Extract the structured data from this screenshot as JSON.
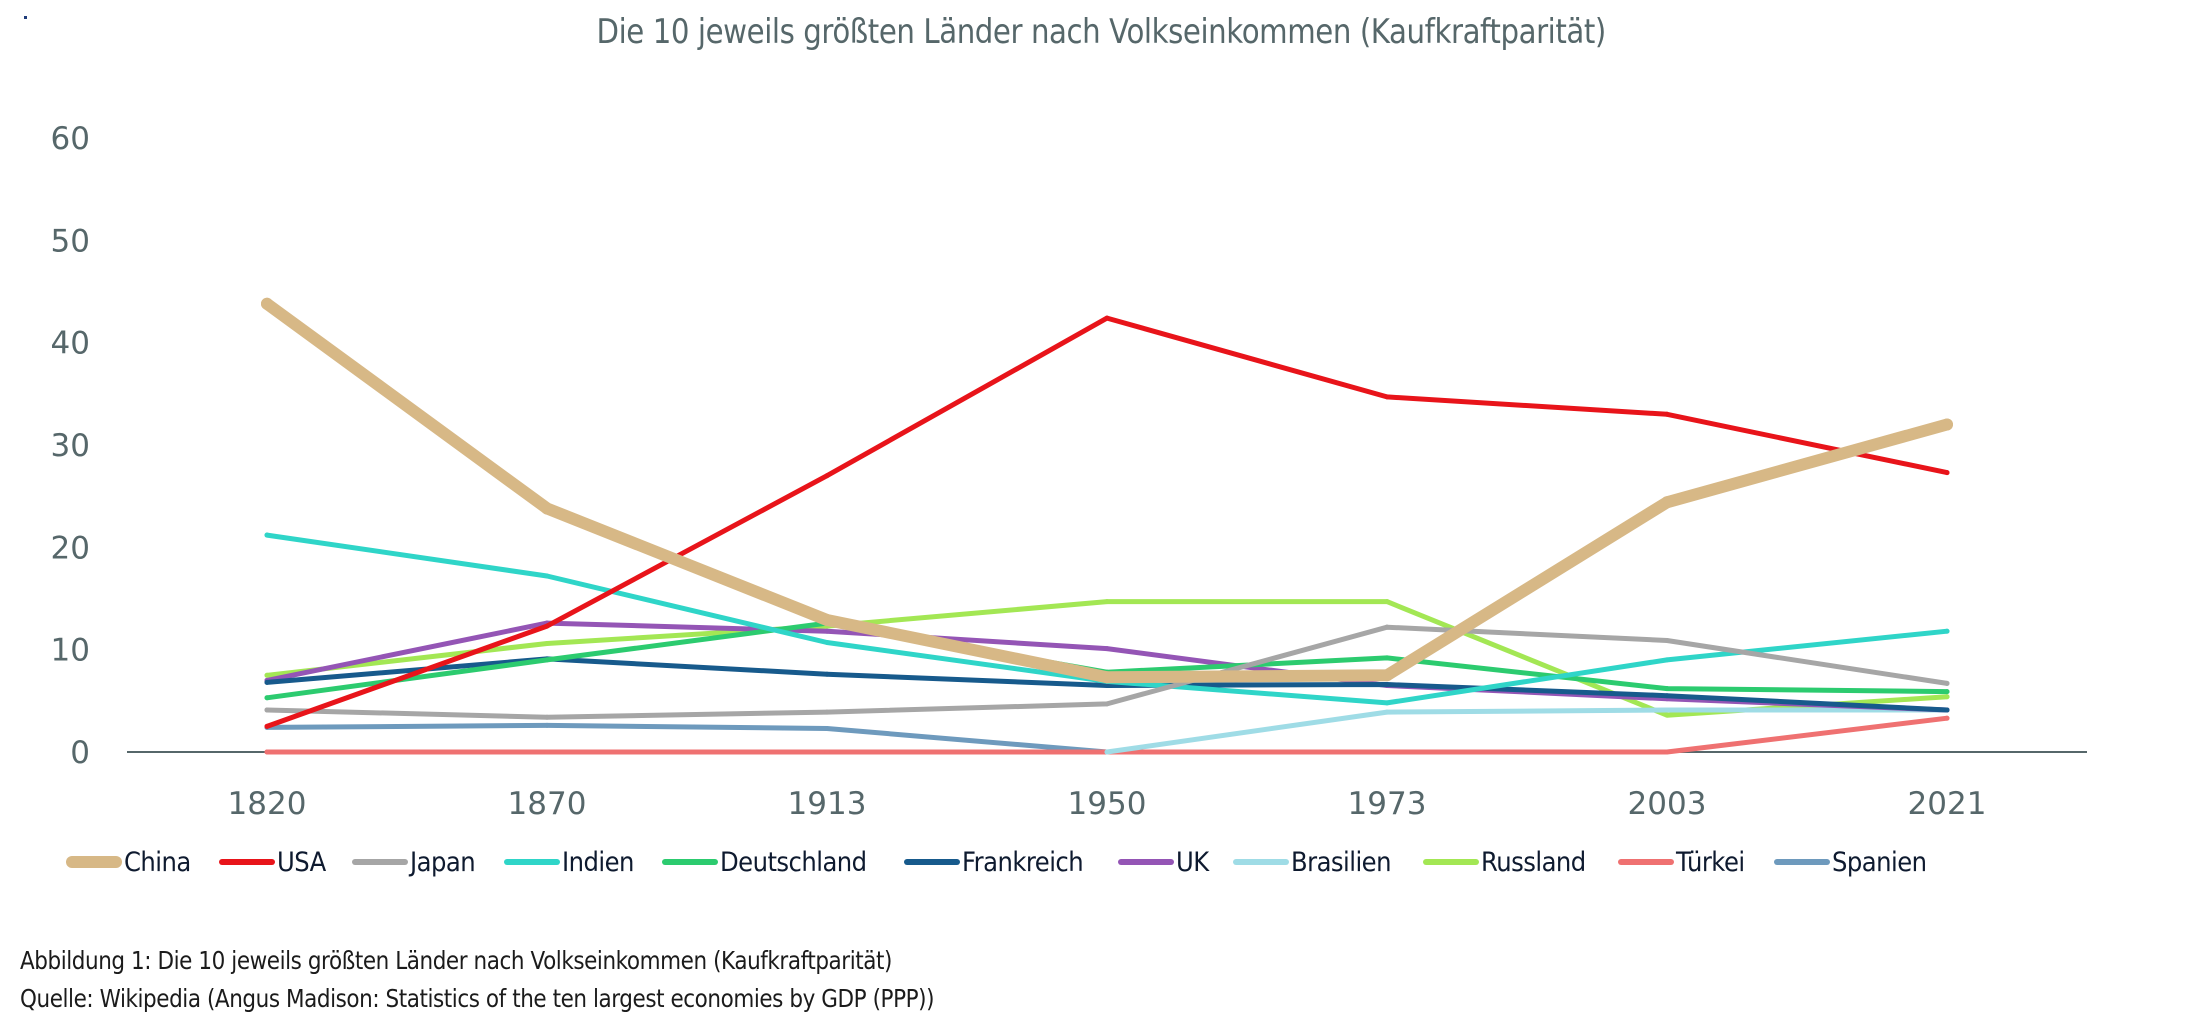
{
  "chart_data": {
    "type": "line",
    "title": "Die 10 jeweils größten Länder nach Volkseinkommen (Kaufkraftparität)",
    "xlabel": "",
    "ylabel": "",
    "categories": [
      "1820",
      "1870",
      "1913",
      "1950",
      "1973",
      "2003",
      "2021"
    ],
    "ylim": [
      0,
      60
    ],
    "yticks": [
      "0",
      "10",
      "20",
      "30",
      "40",
      "50",
      "60"
    ],
    "grid": false,
    "legend_position": "bottom",
    "series": [
      {
        "name": "China",
        "color": "#d7b886",
        "emphasis": true,
        "values": [
          43.8,
          23.8,
          12.9,
          7.3,
          7.5,
          24.4,
          32.0
        ]
      },
      {
        "name": "USA",
        "color": "#e8141a",
        "values": [
          2.5,
          12.3,
          27.0,
          42.4,
          34.7,
          33.0,
          27.3
        ]
      },
      {
        "name": "Japan",
        "color": "#a6a6a6",
        "values": [
          4.1,
          3.4,
          3.9,
          4.7,
          12.2,
          10.9,
          6.7
        ]
      },
      {
        "name": "Indien",
        "color": "#2fd5c8",
        "values": [
          21.2,
          17.2,
          10.7,
          6.9,
          4.8,
          9.0,
          11.8
        ]
      },
      {
        "name": "Deutschland",
        "color": "#2ccb6f",
        "values": [
          5.3,
          9.0,
          12.6,
          7.8,
          9.2,
          6.2,
          5.9
        ]
      },
      {
        "name": "Frankreich",
        "color": "#175a8c",
        "values": [
          6.8,
          9.1,
          7.6,
          6.5,
          6.6,
          5.5,
          4.1
        ]
      },
      {
        "name": "UK",
        "color": "#9455b5",
        "values": [
          7.0,
          12.6,
          11.8,
          10.1,
          6.5,
          5.2,
          4.1
        ]
      },
      {
        "name": "Brasilien",
        "color": "#9fdce6",
        "values": [
          null,
          null,
          null,
          0.0,
          3.9,
          4.1,
          4.1
        ]
      },
      {
        "name": "Russland",
        "color": "#a3e754",
        "values": [
          7.5,
          10.6,
          12.3,
          14.7,
          14.7,
          3.6,
          5.4
        ]
      },
      {
        "name": "Türkei",
        "color": "#ef7171",
        "values": [
          0.0,
          0.0,
          0.0,
          0.0,
          0.0,
          0.0,
          3.3
        ]
      },
      {
        "name": "Spanien",
        "color": "#6e9abd",
        "values": [
          2.4,
          2.6,
          2.3,
          0.0,
          null,
          null,
          null
        ]
      }
    ]
  },
  "caption": {
    "line1": "Abbildung 1: Die 10 jeweils größten Länder nach Volkseinkommen (Kaufkraftparität)",
    "line2": "Quelle: Wikipedia (Angus Madison: Statistics of the ten largest economies by GDP (PPP))"
  },
  "colors": {
    "axis_text": "#56676a",
    "axis_line": "#56676a",
    "legend_text": "#0e1a2f"
  }
}
